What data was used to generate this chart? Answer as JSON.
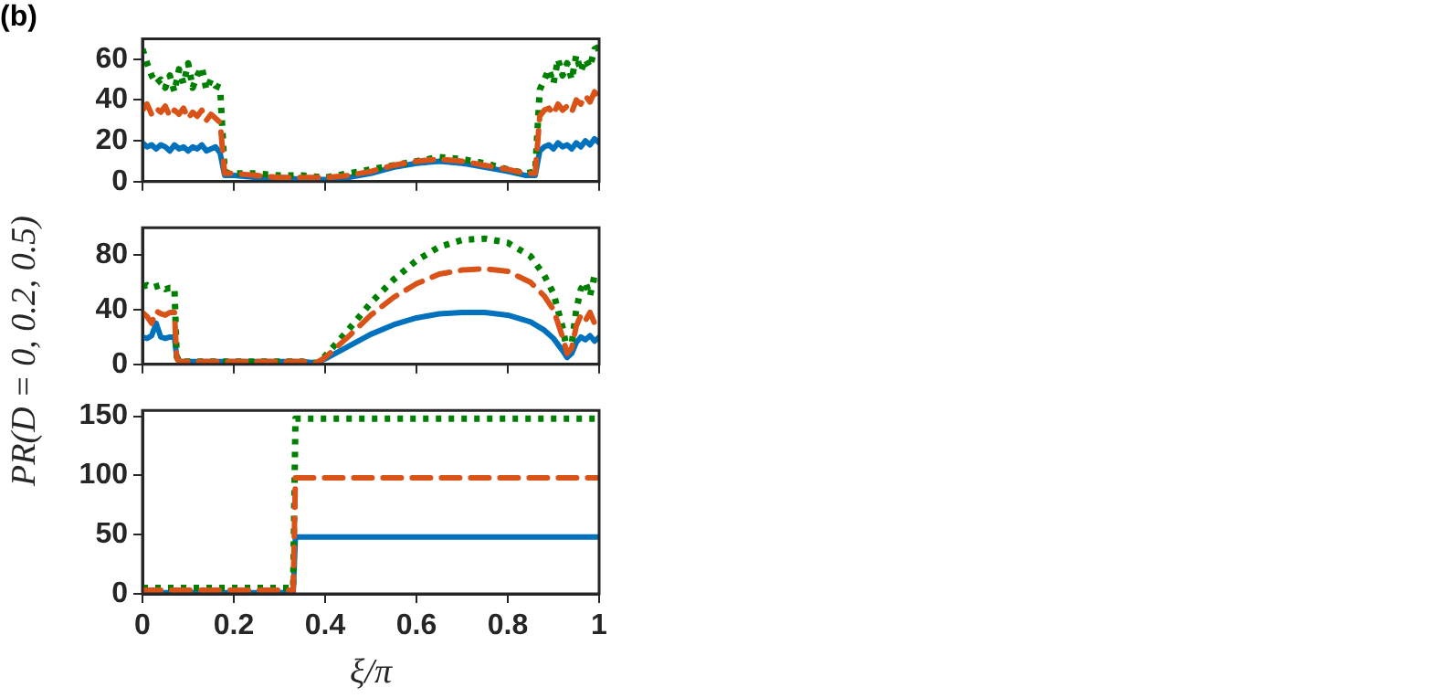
{
  "chart_data": [
    {
      "type": "line",
      "title": "(b)",
      "tick_labels": "y",
      "grid": false,
      "legend": false,
      "marker": "none",
      "x": [
        0,
        0.01,
        0.02,
        0.03,
        0.04,
        0.05,
        0.06,
        0.07,
        0.08,
        0.09,
        0.1,
        0.11,
        0.12,
        0.13,
        0.14,
        0.15,
        0.16,
        0.17,
        0.18,
        0.19,
        0.2,
        0.25,
        0.3,
        0.35,
        0.4,
        0.45,
        0.5,
        0.55,
        0.6,
        0.65,
        0.7,
        0.75,
        0.8,
        0.84,
        0.86,
        0.87,
        0.88,
        0.89,
        0.9,
        0.91,
        0.92,
        0.93,
        0.94,
        0.95,
        0.96,
        0.97,
        0.98,
        0.99,
        1
      ],
      "xlim": [
        0,
        1
      ],
      "xticks": [
        0,
        0.2,
        0.4,
        0.6,
        0.8,
        1
      ],
      "ylim": [
        0,
        70
      ],
      "yticks": [
        0,
        20,
        40,
        60
      ],
      "series": [
        {
          "color": "#0072bd",
          "line_style": "solid",
          "values": [
            19,
            17,
            18,
            16,
            18,
            17,
            15,
            18,
            16,
            17,
            15,
            17,
            16,
            18,
            15,
            16,
            17,
            14,
            3,
            3,
            3,
            2,
            2,
            1,
            1,
            2,
            4,
            7,
            9,
            10,
            9,
            7,
            5,
            3,
            3,
            15,
            17,
            18,
            16,
            19,
            17,
            18,
            16,
            19,
            17,
            20,
            18,
            21,
            19
          ]
        },
        {
          "color": "#d95319",
          "line_style": "dashed",
          "values": [
            35,
            38,
            33,
            36,
            34,
            37,
            32,
            35,
            33,
            36,
            31,
            34,
            32,
            35,
            30,
            33,
            31,
            29,
            4,
            4,
            4,
            3,
            2,
            2,
            2,
            3,
            5,
            8,
            10,
            11,
            10,
            8,
            6,
            4,
            4,
            32,
            35,
            36,
            33,
            38,
            35,
            37,
            34,
            40,
            38,
            42,
            39,
            44,
            41
          ]
        },
        {
          "color": "#008000",
          "line_style": "dotted",
          "values": [
            65,
            58,
            52,
            48,
            50,
            46,
            52,
            44,
            55,
            48,
            58,
            46,
            52,
            56,
            45,
            50,
            47,
            46,
            5,
            4,
            4,
            4,
            3,
            3,
            2,
            4,
            6,
            8,
            10,
            12,
            11,
            9,
            6,
            4,
            5,
            45,
            50,
            55,
            48,
            60,
            52,
            58,
            50,
            62,
            54,
            60,
            56,
            65,
            66
          ]
        }
      ]
    },
    {
      "type": "line",
      "ylabel": "PR(D = 0, 0.2, 0.5)",
      "tick_labels": "y",
      "grid": false,
      "legend": false,
      "marker": "none",
      "x": [
        0,
        0.01,
        0.02,
        0.03,
        0.04,
        0.05,
        0.06,
        0.07,
        0.075,
        0.08,
        0.1,
        0.15,
        0.2,
        0.25,
        0.3,
        0.35,
        0.38,
        0.4,
        0.45,
        0.5,
        0.55,
        0.6,
        0.65,
        0.7,
        0.75,
        0.8,
        0.85,
        0.88,
        0.9,
        0.92,
        0.93,
        0.94,
        0.95,
        0.96,
        0.97,
        0.98,
        0.99,
        1
      ],
      "xlim": [
        0,
        1
      ],
      "xticks": [
        0,
        0.2,
        0.4,
        0.6,
        0.8,
        1
      ],
      "ylim": [
        0,
        100
      ],
      "yticks": [
        0,
        40,
        80
      ],
      "series": [
        {
          "color": "#0072bd",
          "line_style": "solid",
          "values": [
            20,
            19,
            21,
            30,
            20,
            19,
            20,
            20,
            5,
            2,
            2,
            2,
            2,
            2,
            2,
            2,
            1,
            4,
            13,
            22,
            29,
            34,
            37,
            38,
            38,
            36,
            31,
            25,
            19,
            10,
            5,
            8,
            16,
            20,
            18,
            21,
            17,
            20
          ]
        },
        {
          "color": "#d95319",
          "line_style": "dashed",
          "values": [
            38,
            35,
            30,
            39,
            37,
            36,
            38,
            38,
            5,
            2,
            2,
            2,
            2,
            2,
            2,
            2,
            1,
            5,
            20,
            36,
            49,
            59,
            66,
            69,
            70,
            68,
            60,
            50,
            40,
            20,
            8,
            12,
            28,
            36,
            32,
            38,
            30,
            35
          ]
        },
        {
          "color": "#008000",
          "line_style": "dotted",
          "values": [
            57,
            58,
            56,
            57,
            58,
            55,
            56,
            56,
            6,
            2,
            2,
            2,
            2,
            2,
            2,
            2,
            1,
            6,
            25,
            45,
            62,
            76,
            86,
            91,
            92,
            89,
            79,
            65,
            52,
            27,
            10,
            15,
            40,
            55,
            60,
            50,
            65,
            62
          ]
        }
      ]
    },
    {
      "type": "line",
      "xlabel": "ξ/π",
      "grid": false,
      "legend": false,
      "marker": "none",
      "x": [
        0,
        0.1,
        0.2,
        0.3,
        0.33,
        0.335,
        0.4,
        0.6,
        0.8,
        1
      ],
      "xlim": [
        0,
        1
      ],
      "xticks": [
        0,
        0.2,
        0.4,
        0.6,
        0.8,
        1
      ],
      "ylim": [
        0,
        155
      ],
      "yticks": [
        0,
        50,
        100,
        150
      ],
      "series": [
        {
          "color": "#0072bd",
          "line_style": "solid",
          "values": [
            1,
            1,
            1,
            1,
            1,
            48,
            48,
            48,
            48,
            48
          ]
        },
        {
          "color": "#d95319",
          "line_style": "dashed",
          "values": [
            3,
            3,
            3,
            3,
            3,
            98,
            98,
            98,
            98,
            98
          ]
        },
        {
          "color": "#008000",
          "line_style": "dotted",
          "values": [
            5,
            5,
            5,
            5,
            5,
            148,
            148,
            148,
            148,
            148
          ]
        }
      ]
    }
  ]
}
